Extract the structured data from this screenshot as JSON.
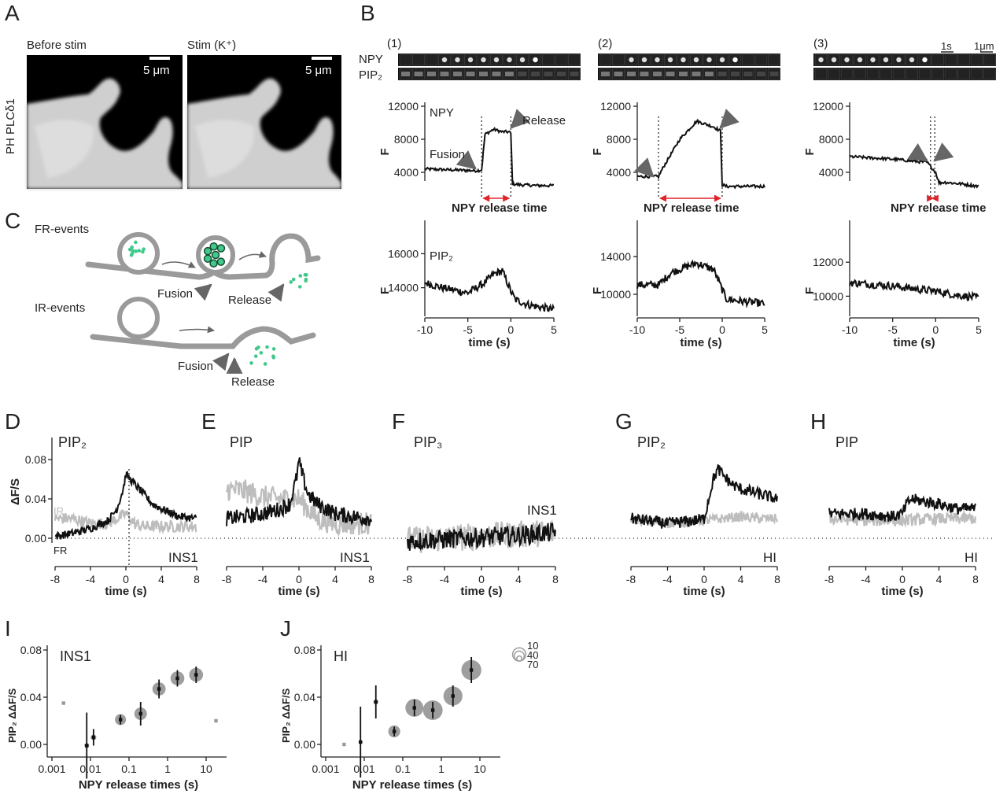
{
  "panel_letters": {
    "A": "A",
    "B": "B",
    "C": "C",
    "D": "D",
    "E": "E",
    "F": "F",
    "G": "G",
    "H": "H",
    "I": "I",
    "J": "J"
  },
  "A": {
    "ylabel": "PH PLCδ1",
    "image_titles": [
      "Before stim",
      "Stim (K⁺)"
    ],
    "scalebar_label": "5 μm"
  },
  "B": {
    "kymo_row_labels": [
      "NPY",
      "PIP₂"
    ],
    "subpanel_labels": [
      "(1)",
      "(2)",
      "(3)"
    ],
    "time_scale_label": "1s",
    "space_scale_label": "1μm",
    "trace_label_npy": "NPY",
    "trace_label_pip2": "PIP₂",
    "axis_ylabel": "F",
    "xlabel": "time (s)",
    "release_time_label": "NPY release time",
    "arrow_labels": {
      "fusion": "Fusion",
      "release": "Release"
    },
    "x_ticks": [
      "-10",
      "-5",
      "0",
      "5"
    ],
    "npy_y_ticks": [
      "12000",
      "8000",
      "4000"
    ],
    "pip2_y_ticks": [
      [
        "16000",
        "14000"
      ],
      [
        "14000",
        "10000"
      ],
      [
        "12000",
        "10000"
      ]
    ]
  },
  "C": {
    "title_fr": "FR-events",
    "title_ir": "IR-events",
    "fusion": "Fusion",
    "release": "Release"
  },
  "chart_data": [
    {
      "panel": "D",
      "type": "line",
      "title": "PIP₂",
      "cell_label": "INS1",
      "xlabel": "time (s)",
      "ylabel": "ΔF/S",
      "xlim": [
        -8,
        8
      ],
      "ylim": [
        -0.01,
        0.09
      ],
      "x_ticks": [
        "-8",
        "-4",
        "0",
        "4",
        "8"
      ],
      "y_ticks": [
        "0.00",
        "0.04",
        "0.08"
      ],
      "series": [
        {
          "name": "IR",
          "color": "#bdbdbd",
          "x": [
            -8,
            -6,
            -4,
            -2,
            -1,
            0,
            1,
            2,
            4,
            6,
            8
          ],
          "y": [
            0.02,
            0.02,
            0.015,
            0.015,
            0.02,
            0.025,
            0.015,
            0.012,
            0.012,
            0.012,
            0.012
          ]
        },
        {
          "name": "FR",
          "color": "#111111",
          "x": [
            -8,
            -6,
            -4,
            -2,
            -1,
            -0.3,
            0,
            1,
            2,
            3,
            4,
            6,
            8
          ],
          "y": [
            0.002,
            0.005,
            0.01,
            0.018,
            0.03,
            0.05,
            0.065,
            0.055,
            0.045,
            0.035,
            0.03,
            0.022,
            0.02
          ]
        }
      ]
    },
    {
      "panel": "E",
      "type": "line",
      "title": "PIP",
      "cell_label": "INS1",
      "xlabel": "time (s)",
      "xlim": [
        -8,
        8
      ],
      "ylim": [
        -0.01,
        0.09
      ],
      "x_ticks": [
        "-8",
        "-4",
        "0",
        "4",
        "8"
      ],
      "series": [
        {
          "color": "#bdbdbd",
          "x": [
            -8,
            -6,
            -4,
            -2,
            -1,
            0,
            1,
            2,
            4,
            6,
            8
          ],
          "y": [
            0.05,
            0.048,
            0.042,
            0.04,
            0.04,
            0.04,
            0.03,
            0.02,
            0.015,
            0.015,
            0.015
          ]
        },
        {
          "color": "#111111",
          "x": [
            -8,
            -6,
            -4,
            -2,
            -1,
            -0.3,
            0,
            0.5,
            1,
            2,
            4,
            6,
            8
          ],
          "y": [
            0.02,
            0.022,
            0.025,
            0.03,
            0.035,
            0.06,
            0.078,
            0.06,
            0.045,
            0.035,
            0.025,
            0.022,
            0.02
          ]
        }
      ]
    },
    {
      "panel": "F",
      "type": "line",
      "title": "PIP₃",
      "cell_label": "INS1",
      "xlabel": "time (s)",
      "xlim": [
        -8,
        8
      ],
      "ylim": [
        -0.01,
        0.09
      ],
      "x_ticks": [
        "-8",
        "-4",
        "0",
        "4",
        "8"
      ],
      "series": [
        {
          "color": "#bdbdbd",
          "x": [
            -8,
            -4,
            0,
            4,
            8
          ],
          "y": [
            -0.002,
            0.0,
            0.002,
            0.004,
            0.006
          ]
        },
        {
          "color": "#111111",
          "x": [
            -8,
            -4,
            0,
            4,
            8
          ],
          "y": [
            -0.003,
            -0.001,
            0.001,
            0.003,
            0.006
          ]
        }
      ]
    },
    {
      "panel": "G",
      "type": "line",
      "title": "PIP₂",
      "cell_label": "HI",
      "xlabel": "time (s)",
      "xlim": [
        -8,
        8
      ],
      "ylim": [
        -0.01,
        0.09
      ],
      "x_ticks": [
        "-8",
        "-4",
        "0",
        "4",
        "8"
      ],
      "series": [
        {
          "color": "#bdbdbd",
          "x": [
            -8,
            -4,
            0,
            2,
            4,
            6,
            8
          ],
          "y": [
            0.02,
            0.015,
            0.018,
            0.02,
            0.022,
            0.02,
            0.02
          ]
        },
        {
          "color": "#111111",
          "x": [
            -8,
            -4,
            -1,
            0,
            0.5,
            1,
            1.5,
            2,
            3,
            4,
            6,
            8
          ],
          "y": [
            0.02,
            0.015,
            0.018,
            0.02,
            0.04,
            0.06,
            0.07,
            0.065,
            0.055,
            0.05,
            0.045,
            0.04
          ]
        }
      ]
    },
    {
      "panel": "H",
      "type": "line",
      "title": "PIP",
      "cell_label": "HI",
      "xlabel": "time (s)",
      "xlim": [
        -8,
        8
      ],
      "ylim": [
        -0.01,
        0.09
      ],
      "x_ticks": [
        "-8",
        "-4",
        "0",
        "4",
        "8"
      ],
      "series": [
        {
          "color": "#bdbdbd",
          "x": [
            -8,
            -4,
            0,
            4,
            8
          ],
          "y": [
            0.02,
            0.018,
            0.018,
            0.02,
            0.02
          ]
        },
        {
          "color": "#111111",
          "x": [
            -8,
            -4,
            -1,
            0,
            0.5,
            1,
            2,
            4,
            6,
            8
          ],
          "y": [
            0.025,
            0.025,
            0.022,
            0.025,
            0.035,
            0.04,
            0.038,
            0.035,
            0.03,
            0.03
          ]
        }
      ]
    },
    {
      "panel": "I",
      "type": "scatter",
      "title": "INS1",
      "xlabel": "NPY release times (s)",
      "ylabel": "PIP₂ ΔΔF/S",
      "xscale": "log",
      "xlim": [
        0.001,
        30
      ],
      "ylim": [
        -0.005,
        0.08
      ],
      "x_ticks": [
        "0.001",
        "0.01",
        "0.1",
        "1",
        "10"
      ],
      "y_ticks": [
        "0.00",
        "0.04",
        "0.08"
      ],
      "points": [
        {
          "x": 0.002,
          "y": 0.035,
          "err": 0,
          "n": 1
        },
        {
          "x": 0.008,
          "y": -0.001,
          "err": 0.028,
          "n": 3
        },
        {
          "x": 0.012,
          "y": 0.006,
          "err": 0.007,
          "n": 4
        },
        {
          "x": 0.06,
          "y": 0.021,
          "err": 0.004,
          "n": 15
        },
        {
          "x": 0.2,
          "y": 0.026,
          "err": 0.01,
          "n": 20
        },
        {
          "x": 0.6,
          "y": 0.047,
          "err": 0.008,
          "n": 22
        },
        {
          "x": 1.8,
          "y": 0.056,
          "err": 0.007,
          "n": 24
        },
        {
          "x": 5.5,
          "y": 0.059,
          "err": 0.007,
          "n": 24
        },
        {
          "x": 18,
          "y": 0.02,
          "err": 0,
          "n": 1
        }
      ]
    },
    {
      "panel": "J",
      "type": "scatter",
      "title": "HI",
      "xlabel": "NPY release times (s)",
      "ylabel": "PIP₂ ΔΔF/S",
      "xscale": "log",
      "xlim": [
        0.001,
        30
      ],
      "ylim": [
        -0.005,
        0.08
      ],
      "x_ticks": [
        "0.001",
        "0.01",
        "0.1",
        "1",
        "10"
      ],
      "y_ticks": [
        "0.00",
        "0.04",
        "0.08"
      ],
      "size_legend": [
        "10",
        "40",
        "70"
      ],
      "points": [
        {
          "x": 0.003,
          "y": 0.0,
          "err": 0,
          "n": 1
        },
        {
          "x": 0.008,
          "y": 0.002,
          "err": 0.03,
          "n": 2
        },
        {
          "x": 0.02,
          "y": 0.036,
          "err": 0.014,
          "n": 3
        },
        {
          "x": 0.06,
          "y": 0.011,
          "err": 0.004,
          "n": 18
        },
        {
          "x": 0.2,
          "y": 0.031,
          "err": 0.007,
          "n": 40
        },
        {
          "x": 0.6,
          "y": 0.029,
          "err": 0.007,
          "n": 48
        },
        {
          "x": 2,
          "y": 0.041,
          "err": 0.009,
          "n": 45
        },
        {
          "x": 6,
          "y": 0.063,
          "err": 0.011,
          "n": 50
        }
      ]
    }
  ],
  "colors": {
    "trace_black": "#111111",
    "trace_gray": "#bdbdbd",
    "granule_green": "#40c98a",
    "arrow_gray": "#666666",
    "release_red": "#e0242a",
    "membrane_gray": "#9a9a9a"
  }
}
